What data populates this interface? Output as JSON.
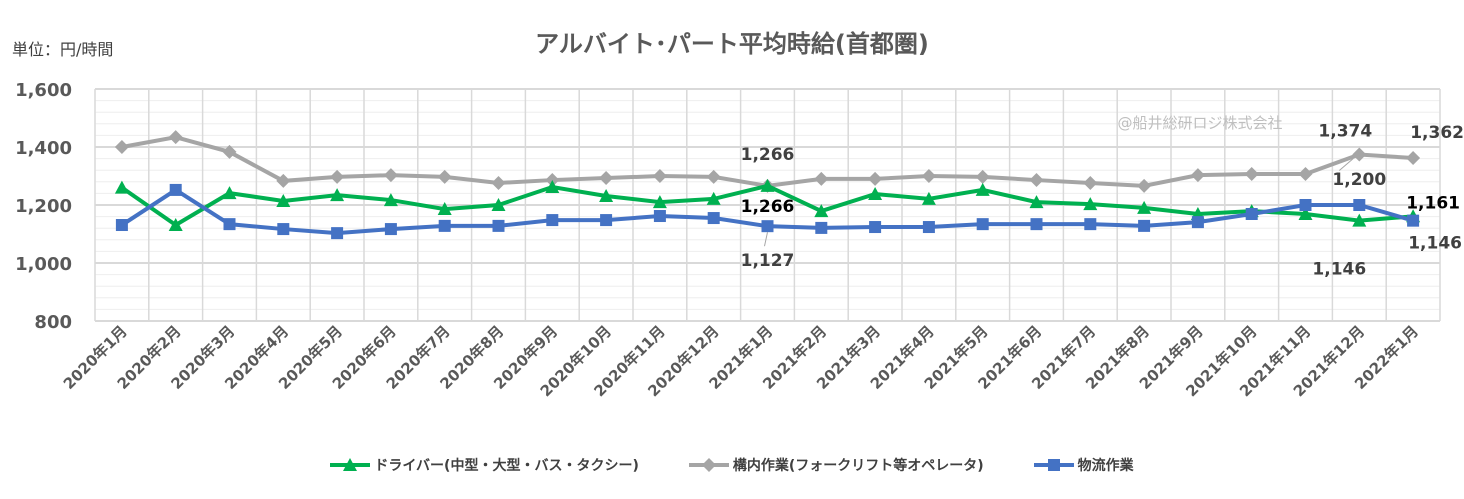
{
  "chart_data": {
    "type": "line",
    "title": "アルバイト･パート平均時給(首都圏)",
    "unit_label": "単位：円/時間",
    "watermark": "@船井総研ロジ株式会社",
    "ylim": [
      800,
      1600
    ],
    "yticks": [
      "800",
      "1,000",
      "1,200",
      "1,400",
      "1,600"
    ],
    "grid": true,
    "legend_position": "bottom",
    "categories": [
      "2020年1月",
      "2020年2月",
      "2020年3月",
      "2020年4月",
      "2020年5月",
      "2020年6月",
      "2020年7月",
      "2020年8月",
      "2020年9月",
      "2020年10月",
      "2020年11月",
      "2020年12月",
      "2021年1月",
      "2021年2月",
      "2021年3月",
      "2021年4月",
      "2021年5月",
      "2021年6月",
      "2021年7月",
      "2021年8月",
      "2021年9月",
      "2021年10月",
      "2021年11月",
      "2021年12月",
      "2022年1月"
    ],
    "series": [
      {
        "name": "ドライバー(中型・大型・バス・タクシー)",
        "color": "#00B050",
        "marker": "triangle",
        "values": [
          1260,
          1131,
          1241,
          1214,
          1234,
          1217,
          1186,
          1200,
          1262,
          1231,
          1210,
          1221,
          1266,
          1179,
          1238,
          1221,
          1252,
          1210,
          1203,
          1190,
          1169,
          1179,
          1169,
          1146,
          1161
        ]
      },
      {
        "name": "構内作業(フォークリフト等オペレータ)",
        "color": "#A5A5A5",
        "marker": "diamond",
        "values": [
          1400,
          1434,
          1383,
          1283,
          1297,
          1303,
          1297,
          1276,
          1286,
          1293,
          1300,
          1297,
          1266,
          1290,
          1290,
          1300,
          1297,
          1286,
          1276,
          1266,
          1303,
          1307,
          1307,
          1374,
          1362
        ]
      },
      {
        "name": "物流作業",
        "color": "#4472C4",
        "marker": "square",
        "values": [
          1131,
          1252,
          1134,
          1117,
          1103,
          1117,
          1128,
          1128,
          1148,
          1148,
          1162,
          1155,
          1127,
          1121,
          1124,
          1124,
          1134,
          1134,
          1134,
          1128,
          1141,
          1169,
          1200,
          1200,
          1146
        ]
      }
    ],
    "annotations": [
      {
        "text": "1,266",
        "series": 1,
        "index": 12
      },
      {
        "text": "1,266",
        "series": 0,
        "index": 12
      },
      {
        "text": "1,127",
        "series": 2,
        "index": 12
      },
      {
        "text": "1,374",
        "series": 1,
        "index": 23
      },
      {
        "text": "1,200",
        "series": 2,
        "index": 23
      },
      {
        "text": "1,146",
        "series": 0,
        "index": 23
      },
      {
        "text": "1,362",
        "series": 1,
        "index": 24
      },
      {
        "text": "1,161",
        "series": 0,
        "index": 24
      },
      {
        "text": "1,146",
        "series": 2,
        "index": 24
      }
    ]
  }
}
